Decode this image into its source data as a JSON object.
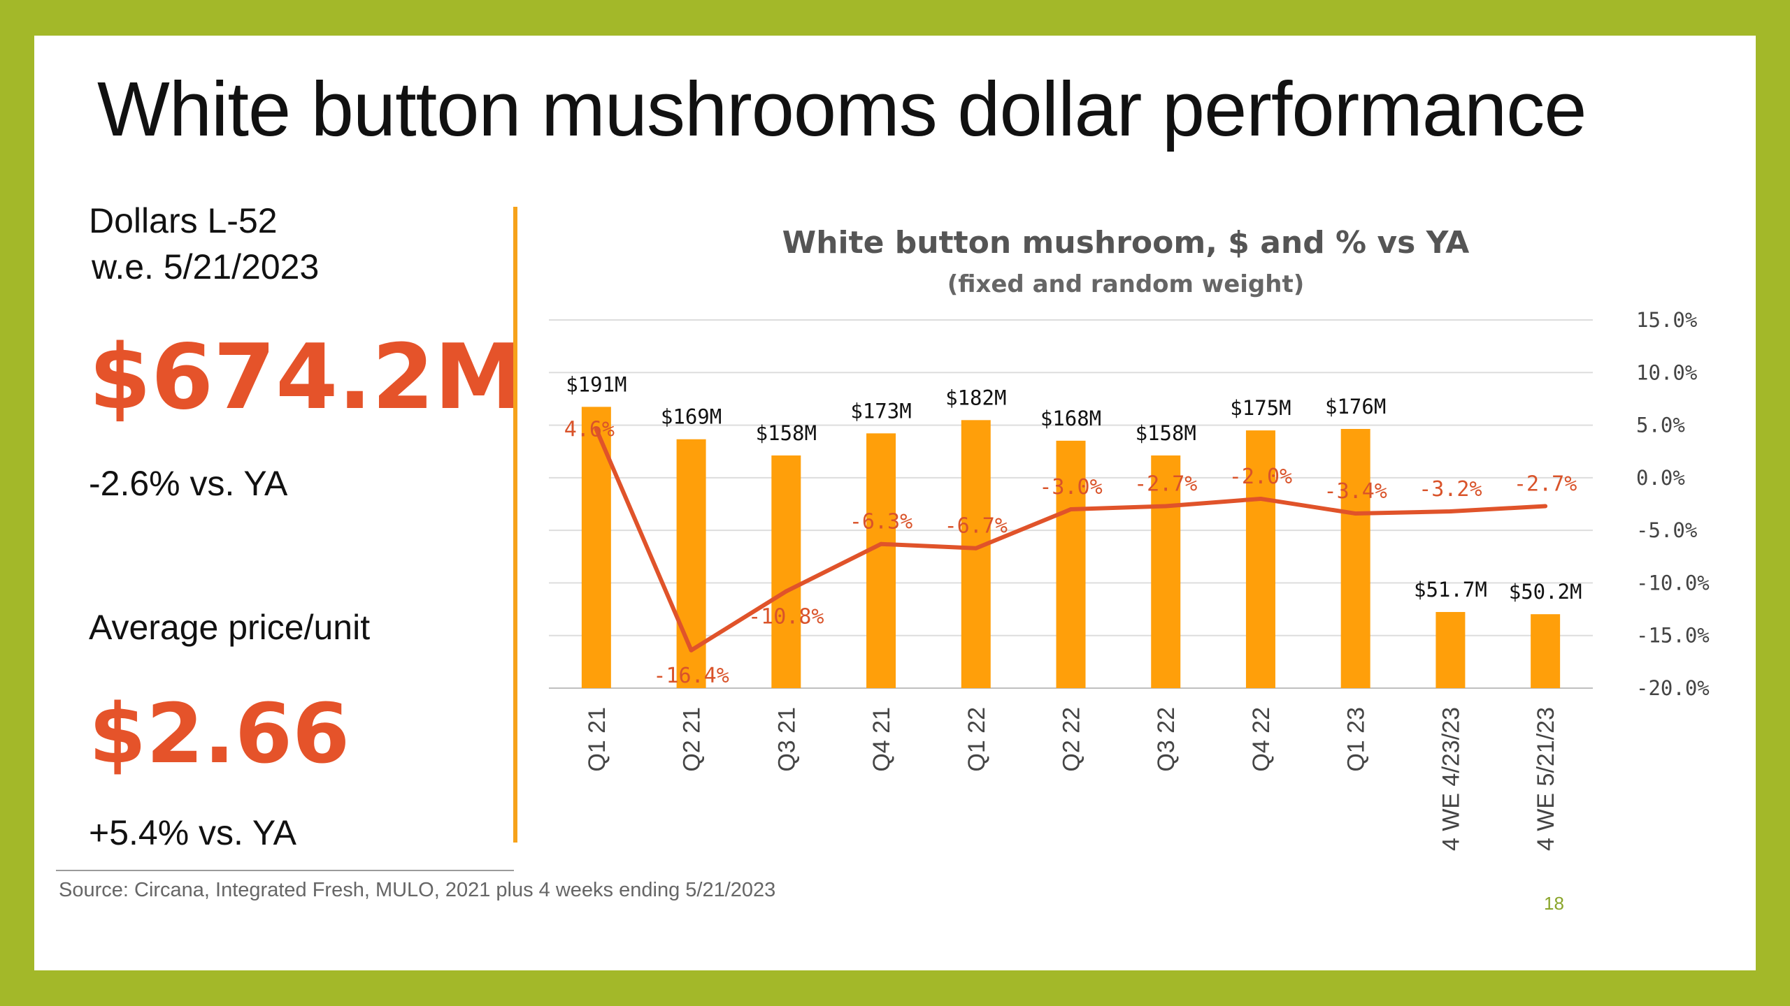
{
  "slide": {
    "title": "White button mushrooms dollar performance",
    "dollars_label": "Dollars L-52",
    "week_ending_label": "w.e. 5/21/2023",
    "dollars_value": "$674.2M",
    "dollars_change": "-2.6% vs. YA",
    "price_label": "Average price/unit",
    "price_value": "$2.66",
    "price_change": "+5.4% vs. YA",
    "source": "Source: Circana, Integrated Fresh, MULO, 2021 plus 4 weeks ending 5/21/2023",
    "page_number": "18"
  },
  "colors": {
    "frame": "#a3b829",
    "accent_orange": "#e5532a",
    "bar": "#ff9f0a",
    "line": "#e0532a",
    "divider": "#f6a21a"
  },
  "chart_data": {
    "type": "bar",
    "title": "White button mushroom, $ and % vs YA",
    "subtitle": "(fixed and random weight)",
    "categories": [
      "Q1 21",
      "Q2 21",
      "Q3 21",
      "Q4 21",
      "Q1 22",
      "Q2 22",
      "Q3 22",
      "Q4 22",
      "Q1 23",
      "4 WE 4/23/23",
      "4 WE 5/21/23"
    ],
    "series": [
      {
        "type": "bar",
        "axis": "left",
        "values": [
          191,
          169,
          158,
          173,
          182,
          168,
          158,
          175,
          176,
          51.7,
          50.2
        ],
        "labels": [
          "$191M",
          "$169M",
          "$158M",
          "$173M",
          "$182M",
          "$168M",
          "$158M",
          "$175M",
          "$176M",
          "$51.7M",
          "$50.2M"
        ]
      },
      {
        "type": "line",
        "axis": "right",
        "values": [
          4.6,
          -16.4,
          -10.8,
          -6.3,
          -6.7,
          -3.0,
          -2.7,
          -2.0,
          -3.4,
          -3.2,
          -2.7
        ],
        "labels": [
          "4.6%",
          "-16.4%",
          "-10.8%",
          "-6.3%",
          "-6.7%",
          "-3.0%",
          "-2.7%",
          "-2.0%",
          "-3.4%",
          "-3.2%",
          "-2.7%"
        ]
      }
    ],
    "left_axis": {
      "min": 0,
      "max": 250
    },
    "right_axis": {
      "min": -20,
      "max": 15,
      "ticks": [
        15,
        10,
        5,
        0,
        -5,
        -10,
        -15,
        -20
      ],
      "tick_labels": [
        "15.0%",
        "10.0%",
        "5.0%",
        "0.0%",
        "-5.0%",
        "-10.0%",
        "-15.0%",
        "-20.0%"
      ]
    },
    "grid": true,
    "legend": "none"
  }
}
